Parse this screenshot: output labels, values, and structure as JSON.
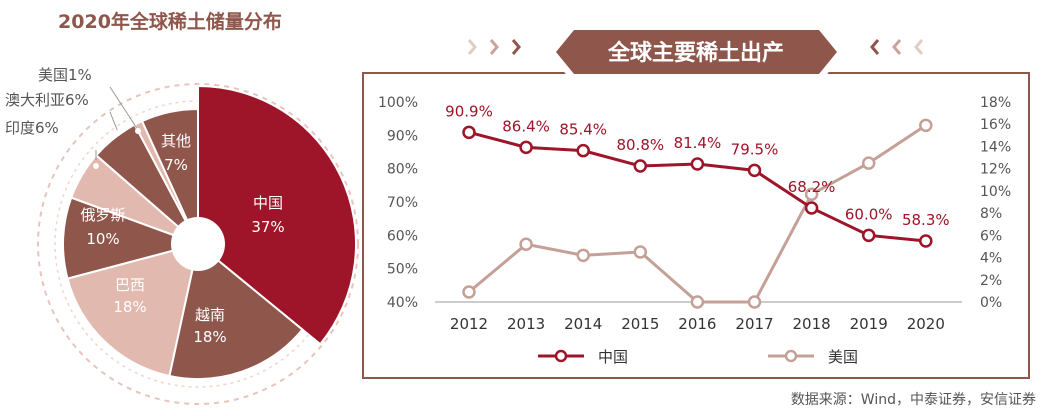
{
  "left_title": "2020年全球稀土储量分布",
  "right_title": "全球主要稀土出产",
  "source": "数据来源：Wind，中泰证券，安信证券",
  "colors": {
    "dark_red": "#9e1428",
    "brown_mid": "#8f574b",
    "pink_light": "#e2b9af",
    "banner": "#8f574b",
    "us_line": "#c4a097",
    "axis_text": "#555555"
  },
  "chart_data": [
    {
      "type": "pie",
      "title": "2020年全球稀土储量分布",
      "slices": [
        {
          "label": "中国",
          "value": 37,
          "pct_label": "37%",
          "color": "#9e1428"
        },
        {
          "label": "越南",
          "value": 18,
          "pct_label": "18%",
          "color": "#8f574b"
        },
        {
          "label": "巴西",
          "value": 18,
          "pct_label": "18%",
          "color": "#e2b9af"
        },
        {
          "label": "俄罗斯",
          "value": 10,
          "pct_label": "10%",
          "color": "#8f574b"
        },
        {
          "label": "印度",
          "value": 6,
          "pct_label": "印度6%",
          "color": "#e2b9af"
        },
        {
          "label": "澳大利亚",
          "value": 6,
          "pct_label": "澳大利亚6%",
          "color": "#8f574b"
        },
        {
          "label": "美国",
          "value": 1,
          "pct_label": "美国1%",
          "color": "#e2b9af"
        },
        {
          "label": "其他",
          "value": 7,
          "pct_label": "7%",
          "color": "#8f574b"
        }
      ]
    },
    {
      "type": "line",
      "title": "全球主要稀土出产",
      "categories": [
        "2012",
        "2013",
        "2014",
        "2015",
        "2016",
        "2017",
        "2018",
        "2019",
        "2020"
      ],
      "y_left": {
        "ticks": [
          "40%",
          "50%",
          "60%",
          "70%",
          "80%",
          "90%",
          "100%"
        ],
        "min": 40,
        "max": 100
      },
      "y_right": {
        "ticks": [
          "0%",
          "2%",
          "4%",
          "6%",
          "8%",
          "10%",
          "12%",
          "14%",
          "16%",
          "18%"
        ],
        "min": 0,
        "max": 18
      },
      "series": [
        {
          "name": "中国",
          "axis": "left",
          "color": "#9e1428",
          "values": [
            90.9,
            86.4,
            85.4,
            80.8,
            81.4,
            79.5,
            68.2,
            60.0,
            58.3
          ],
          "labels": [
            "90.9%",
            "86.4%",
            "85.4%",
            "80.8%",
            "81.4%",
            "79.5%",
            "68.2%",
            "60.0%",
            "58.3%"
          ]
        },
        {
          "name": "美国",
          "axis": "right",
          "color": "#c4a097",
          "values": [
            0.9,
            5.2,
            4.2,
            4.5,
            0.0,
            0.0,
            9.7,
            12.5,
            15.9
          ]
        }
      ],
      "legend": "bottom"
    }
  ]
}
